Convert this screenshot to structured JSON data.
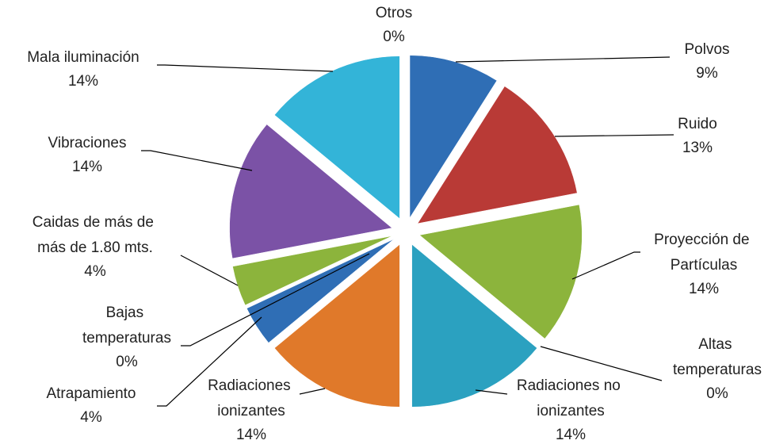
{
  "chart_data": {
    "type": "pie",
    "categories": [
      "Polvos",
      "Ruido",
      "Proyección de Partículas",
      "Altas temperaturas",
      "Radiaciones no ionizantes",
      "Radiaciones ionizantes",
      "Atrapamiento",
      "Bajas temperaturas",
      "Caidas de más de más de 1.80 mts.",
      "Vibraciones",
      "Mala iluminación",
      "Otros"
    ],
    "values": [
      9,
      13,
      14,
      0,
      14,
      14,
      4,
      0,
      4,
      14,
      14,
      0
    ],
    "value_labels": [
      "9%",
      "13%",
      "14%",
      "0%",
      "14%",
      "14%",
      "4%",
      "0%",
      "4%",
      "14%",
      "14%",
      "0%"
    ],
    "colors": [
      "#2f6eb5",
      "#b93a36",
      "#8cb43c",
      "#7b52a6",
      "#2ba1c0",
      "#e0792a",
      "#2f6eb5",
      "#b93a36",
      "#8cb43c",
      "#7b52a6",
      "#33b4d8",
      "#e0792a"
    ]
  }
}
